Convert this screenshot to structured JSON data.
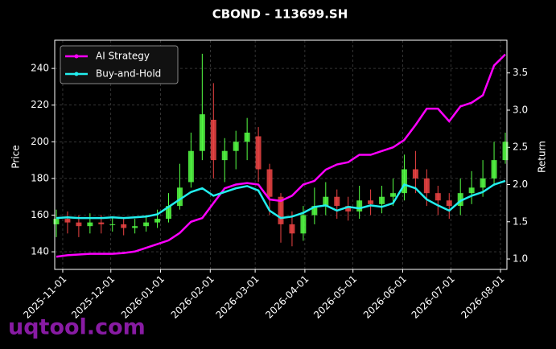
{
  "chart_data": {
    "type": "candlestick",
    "title": "CBOND - 113699.SH",
    "ylabel": "Price",
    "y2label": "Return",
    "watermark": "uqtool.com",
    "x": [
      "2025-10-28",
      "2025-11-04",
      "2025-11-11",
      "2025-11-18",
      "2025-11-25",
      "2025-12-02",
      "2025-12-09",
      "2025-12-16",
      "2025-12-23",
      "2025-12-30",
      "2026-01-06",
      "2026-01-13",
      "2026-01-20",
      "2026-01-27",
      "2026-02-03",
      "2026-02-10",
      "2026-02-17",
      "2026-02-24",
      "2026-03-03",
      "2026-03-10",
      "2026-03-17",
      "2026-03-24",
      "2026-03-31",
      "2026-04-07",
      "2026-04-14",
      "2026-04-21",
      "2026-04-28",
      "2026-05-05",
      "2026-05-12",
      "2026-05-19",
      "2026-05-26",
      "2026-06-02",
      "2026-06-09",
      "2026-06-16",
      "2026-06-23",
      "2026-06-30",
      "2026-07-07",
      "2026-07-14",
      "2026-07-21",
      "2026-07-28",
      "2026-08-04"
    ],
    "open": [
      155,
      158,
      156,
      154,
      156,
      155,
      155,
      153,
      154,
      156,
      158,
      165,
      178,
      195,
      212,
      190,
      195,
      200,
      203,
      185,
      170,
      155,
      150,
      160,
      165,
      170,
      165,
      162,
      168,
      166,
      170,
      172,
      185,
      180,
      172,
      168,
      165,
      172,
      175,
      180,
      190
    ],
    "high": [
      163,
      162,
      160,
      161,
      160,
      159,
      158,
      158,
      160,
      163,
      172,
      188,
      205,
      248,
      232,
      202,
      206,
      213,
      208,
      188,
      172,
      162,
      165,
      175,
      178,
      174,
      170,
      176,
      174,
      176,
      180,
      193,
      195,
      185,
      176,
      172,
      180,
      184,
      190,
      200,
      205
    ],
    "low": [
      148,
      150,
      148,
      150,
      150,
      151,
      149,
      150,
      151,
      153,
      156,
      163,
      175,
      190,
      180,
      178,
      185,
      190,
      178,
      160,
      145,
      143,
      146,
      155,
      160,
      158,
      157,
      158,
      160,
      161,
      165,
      168,
      172,
      165,
      160,
      158,
      160,
      166,
      170,
      176,
      188
    ],
    "close": [
      158,
      156,
      154,
      156,
      155,
      155,
      153,
      154,
      156,
      158,
      165,
      175,
      195,
      215,
      190,
      195,
      200,
      205,
      185,
      170,
      155,
      150,
      160,
      165,
      170,
      165,
      162,
      168,
      166,
      170,
      172,
      185,
      180,
      172,
      168,
      165,
      172,
      175,
      180,
      190,
      200
    ],
    "up_color": "#55ff44",
    "down_color": "#ee4444",
    "series": [
      {
        "name": "AI Strategy",
        "color": "#ff00ff",
        "axis": "y2",
        "values": [
          1.03,
          1.05,
          1.06,
          1.07,
          1.07,
          1.07,
          1.08,
          1.1,
          1.15,
          1.2,
          1.25,
          1.35,
          1.5,
          1.55,
          1.75,
          1.95,
          2.0,
          2.02,
          2.0,
          1.8,
          1.78,
          1.85,
          2.0,
          2.05,
          2.2,
          2.27,
          2.3,
          2.4,
          2.4,
          2.45,
          2.5,
          2.6,
          2.8,
          3.02,
          3.02,
          2.85,
          3.05,
          3.1,
          3.2,
          3.6,
          3.75
        ]
      },
      {
        "name": "Buy-and-Hold",
        "color": "#22eeee",
        "axis": "y2",
        "values": [
          1.55,
          1.56,
          1.55,
          1.55,
          1.55,
          1.56,
          1.55,
          1.56,
          1.57,
          1.6,
          1.7,
          1.8,
          1.9,
          1.95,
          1.85,
          1.9,
          1.95,
          1.98,
          1.92,
          1.65,
          1.55,
          1.57,
          1.62,
          1.7,
          1.72,
          1.65,
          1.7,
          1.68,
          1.72,
          1.7,
          1.75,
          2.0,
          1.95,
          1.8,
          1.72,
          1.65,
          1.78,
          1.85,
          1.9,
          2.0,
          2.05
        ]
      }
    ],
    "xlim": [
      "2025-10-27",
      "2026-08-05"
    ],
    "xticks": [
      "2025-11-01",
      "2025-12-01",
      "2026-01-01",
      "2026-02-01",
      "2026-03-01",
      "2026-04-01",
      "2026-05-01",
      "2026-06-01",
      "2026-07-01",
      "2026-08-01"
    ],
    "ylim": [
      130.4,
      255.4
    ],
    "yticks": [
      140,
      160,
      180,
      200,
      220,
      240
    ],
    "y2lim": [
      0.86,
      3.94
    ],
    "y2ticks": [
      {
        "value": 1,
        "label": "1.0"
      },
      {
        "value": 1.5,
        "label": "1.5"
      },
      {
        "value": 2,
        "label": "2.0"
      },
      {
        "value": 2.5,
        "label": "2.5"
      },
      {
        "value": 3,
        "label": "3.0"
      },
      {
        "value": 3.5,
        "label": "3.5"
      }
    ],
    "grid": true,
    "legend": "upper-left"
  }
}
